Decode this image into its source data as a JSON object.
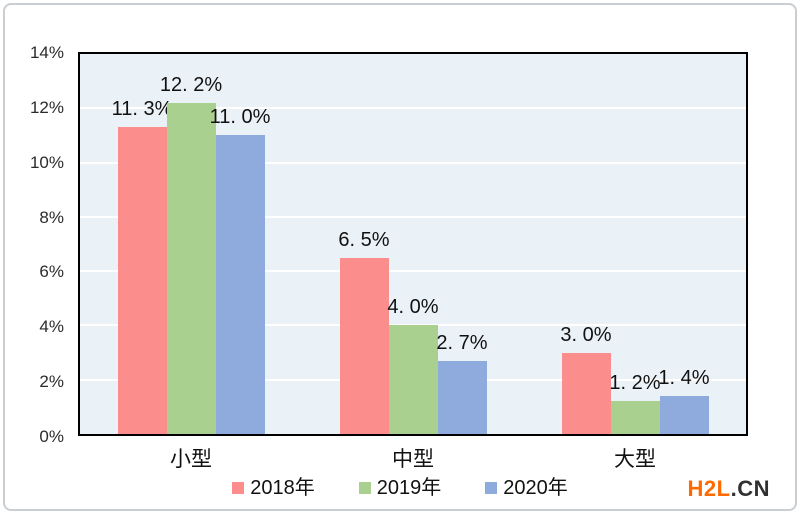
{
  "colors": {
    "series": [
      "#fb8d8d",
      "#a9d08e",
      "#8faadc"
    ],
    "plot_background": "#eaf1f7",
    "gridline": "#ffffff",
    "plot_border": "#000000",
    "text": "#111111",
    "watermark_primary": "#ff6a00",
    "watermark_secondary": "#303030"
  },
  "watermark": {
    "primary": "H2L",
    "secondary": ".CN"
  },
  "chart_data": {
    "type": "bar",
    "categories": [
      "小型",
      "中型",
      "大型"
    ],
    "series": [
      {
        "name": "2018年",
        "values": [
          11.3,
          6.5,
          3.0
        ],
        "labels": [
          "11. 3%",
          "6. 5%",
          "3. 0%"
        ]
      },
      {
        "name": "2019年",
        "values": [
          12.2,
          4.0,
          1.2
        ],
        "labels": [
          "12. 2%",
          "4. 0%",
          "1. 2%"
        ]
      },
      {
        "name": "2020年",
        "values": [
          11.0,
          2.7,
          1.4
        ],
        "labels": [
          "11. 0%",
          "2. 7%",
          "1. 4%"
        ]
      }
    ],
    "title": "",
    "xlabel": "",
    "ylabel": "",
    "ylim": [
      0,
      14
    ],
    "y_ticks": [
      "0%",
      "2%",
      "4%",
      "6%",
      "8%",
      "10%",
      "12%",
      "14%"
    ],
    "y_tick_values": [
      0,
      2,
      4,
      6,
      8,
      10,
      12,
      14
    ],
    "grid": true,
    "legend_position": "bottom"
  }
}
